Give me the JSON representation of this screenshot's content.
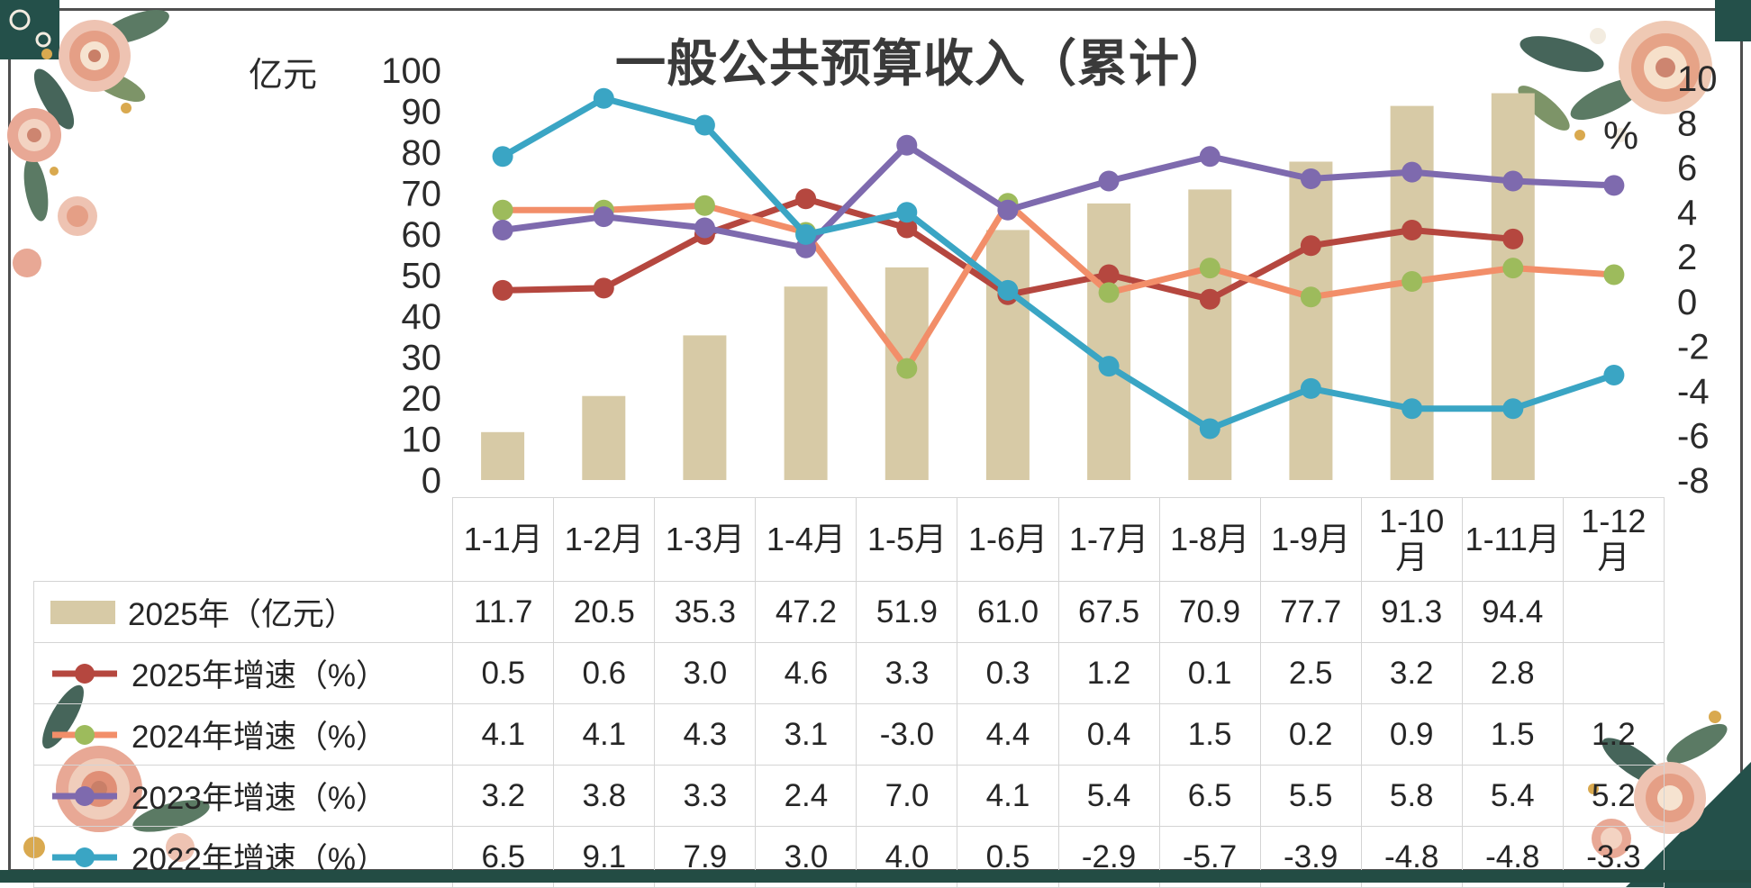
{
  "title": "一般公共预算收入（累计）",
  "axes": {
    "left_unit": "亿元",
    "right_unit": "%"
  },
  "chart_data": {
    "type": "combo-bar-line",
    "title": "一般公共预算收入（累计）",
    "grid": false,
    "legend_position": "table-left",
    "categories": [
      "1-1月",
      "1-2月",
      "1-3月",
      "1-4月",
      "1-5月",
      "1-6月",
      "1-7月",
      "1-8月",
      "1-9月",
      "1-10月",
      "1-11月",
      "1-12月"
    ],
    "left_axis": {
      "unit": "亿元",
      "range": [
        0,
        100
      ],
      "ticks": [
        100,
        90,
        80,
        70,
        60,
        50,
        40,
        30,
        20,
        10,
        0
      ]
    },
    "right_axis": {
      "unit": "%",
      "range": [
        -8,
        10
      ],
      "ticks": [
        10,
        8,
        6,
        4,
        2,
        0,
        -2,
        -4,
        -6,
        -8
      ]
    },
    "series": [
      {
        "key": "rev-2025",
        "name": "2025年（亿元）",
        "type": "bar",
        "axis": "left",
        "color": "#d7caa6",
        "marker_color": "#d7caa6",
        "values": [
          11.7,
          20.5,
          35.3,
          47.2,
          51.9,
          61.0,
          67.5,
          70.9,
          77.7,
          91.3,
          94.4,
          null
        ]
      },
      {
        "key": "growth-2025",
        "name": "2025年增速（%）",
        "type": "line",
        "axis": "right",
        "color": "#b5473f",
        "marker_color": "#b5473f",
        "values": [
          0.5,
          0.6,
          3.0,
          4.6,
          3.3,
          0.3,
          1.2,
          0.1,
          2.5,
          3.2,
          2.8,
          null
        ]
      },
      {
        "key": "growth-2024",
        "name": "2024年增速（%）",
        "type": "line",
        "axis": "right",
        "color": "#f28e69",
        "marker_color": "#9dbb5c",
        "values": [
          4.1,
          4.1,
          4.3,
          3.1,
          -3.0,
          4.4,
          0.4,
          1.5,
          0.2,
          0.9,
          1.5,
          1.2
        ]
      },
      {
        "key": "growth-2023",
        "name": "2023年增速（%）",
        "type": "line",
        "axis": "right",
        "color": "#7e6aae",
        "marker_color": "#7e6aae",
        "values": [
          3.2,
          3.8,
          3.3,
          2.4,
          7.0,
          4.1,
          5.4,
          6.5,
          5.5,
          5.8,
          5.4,
          5.2
        ]
      },
      {
        "key": "growth-2022",
        "name": "2022年增速（%）",
        "type": "line",
        "axis": "right",
        "color": "#3aa5c4",
        "marker_color": "#3aa5c4",
        "values": [
          6.5,
          9.1,
          7.9,
          3.0,
          4.0,
          0.5,
          -2.9,
          -5.7,
          -3.9,
          -4.8,
          -4.8,
          -3.3
        ]
      }
    ]
  }
}
